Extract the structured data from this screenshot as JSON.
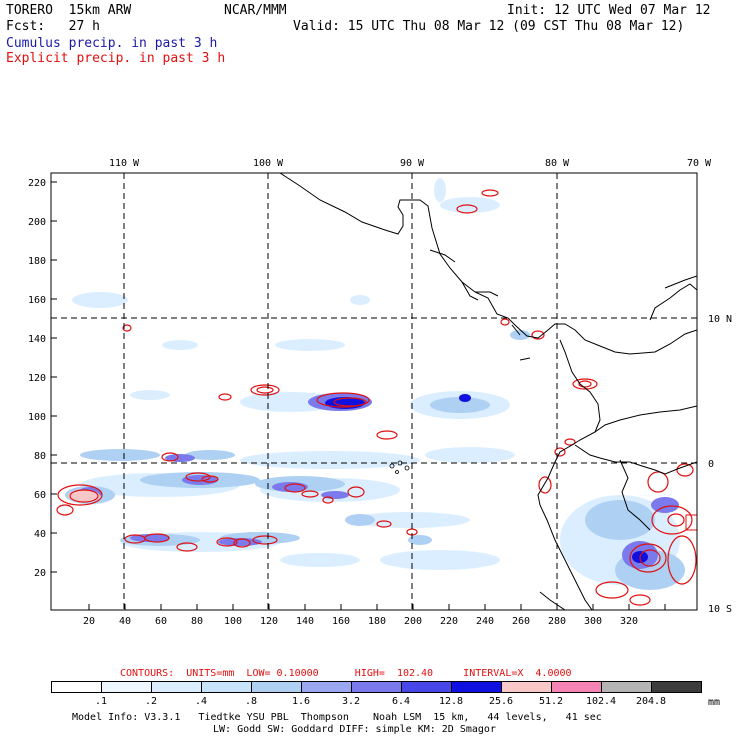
{
  "header": {
    "model": "TORERO  15km ARW",
    "org": "NCAR/MMM",
    "init": "Init: 12 UTC Wed 07 Mar 12",
    "fcst": "Fcst:   27 h",
    "valid": "Valid: 15 UTC Thu 08 Mar 12 (09 CST Thu 08 Mar 12)",
    "field1": "Cumulus precip. in past 3 h",
    "field2": "Explicit precip. in past 3 h",
    "field1_color": "#1a1aa8",
    "field2_color": "#e01010"
  },
  "map": {
    "x_ticks": [
      "20",
      "40",
      "60",
      "80",
      "100",
      "120",
      "140",
      "160",
      "180",
      "200",
      "220",
      "240",
      "260",
      "280",
      "300",
      "320"
    ],
    "y_ticks": [
      "20",
      "40",
      "60",
      "80",
      "100",
      "120",
      "140",
      "160",
      "180",
      "200",
      "220"
    ],
    "lon_labels": [
      "110 W",
      "100 W",
      "90 W",
      "80 W",
      "70 W"
    ],
    "lat_labels": [
      "10 N",
      "0",
      "10 S"
    ]
  },
  "contours": {
    "label": "CONTOURS:  UNITS=mm  LOW= 0.10000      HIGH=  102.40     INTERVAL=X  4.0000",
    "color": "#e01010"
  },
  "colorbar": {
    "colors": [
      "#ffffff",
      "#eef6ff",
      "#dbeeff",
      "#c8e4fb",
      "#aed0f3",
      "#9aa6ef",
      "#7a7aec",
      "#4848e8",
      "#1010e0",
      "#f8c8c8",
      "#f484b4",
      "#b4b4b4",
      "#3c3c3c",
      "#d8a8f0"
    ],
    "labels": [
      ".1",
      ".2",
      ".4",
      ".8",
      "1.6",
      "3.2",
      "6.4",
      "12.8",
      "25.6",
      "51.2",
      "102.4",
      "204.8"
    ],
    "unit": "mm"
  },
  "footer": {
    "line1": "Model Info: V3.3.1   Tiedtke YSU PBL  Thompson    Noah LSM  15 km,   44 levels,   41 sec",
    "line2": "LW: Godd SW: Goddard DIFF: simple KM: 2D Smagor"
  }
}
